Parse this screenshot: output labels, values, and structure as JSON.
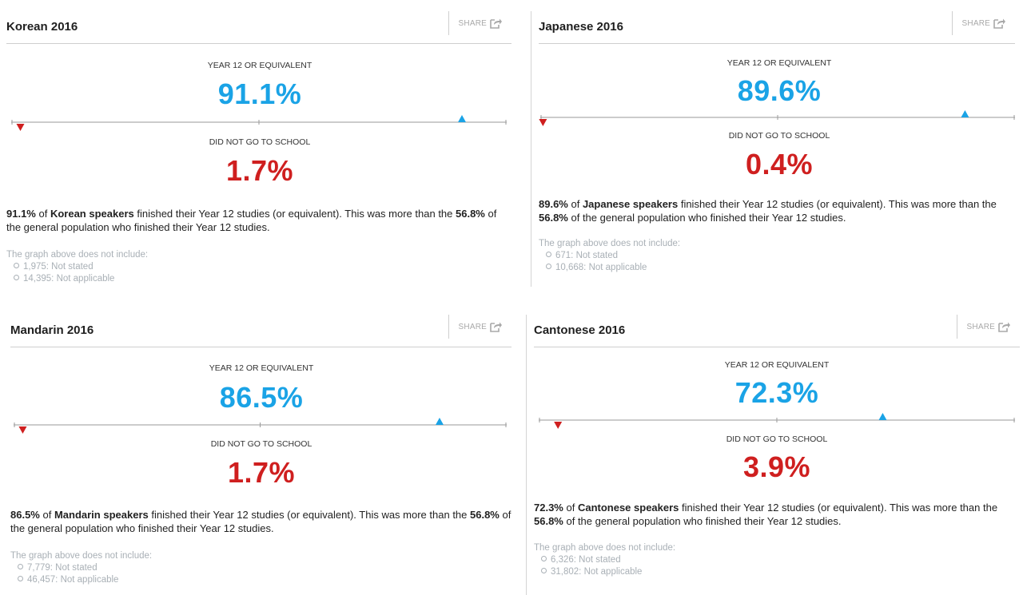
{
  "common": {
    "share_label": "SHARE",
    "year12_label": "YEAR 12 OR EQUIVALENT",
    "noschool_label": "DID NOT GO TO SCHOOL",
    "note_heading": "The graph above does not include:",
    "summary_middle": " finished their Year 12 studies (or equivalent). This was more than the ",
    "summary_tail": " of the general population who finished their Year 12 studies.",
    "general_population_pct": "56.8%"
  },
  "colors": {
    "blue": "#1aa3e6",
    "red": "#cf1f1f"
  },
  "chart_data": [
    {
      "type": "marker-scale",
      "title": "Korean 2016",
      "speakers": "Korean speakers",
      "year12_pct": 91.1,
      "year12_text": "91.1%",
      "noschool_pct": 1.7,
      "noschool_text": "1.7%",
      "scale_range": [
        0,
        100
      ],
      "note_items": [
        "1,975: Not stated",
        "14,395: Not applicable"
      ]
    },
    {
      "type": "marker-scale",
      "title": "Japanese 2016",
      "speakers": "Japanese speakers",
      "year12_pct": 89.6,
      "year12_text": "89.6%",
      "noschool_pct": 0.4,
      "noschool_text": "0.4%",
      "scale_range": [
        0,
        100
      ],
      "note_items": [
        "671: Not stated",
        "10,668: Not applicable"
      ]
    },
    {
      "type": "marker-scale",
      "title": "Mandarin 2016",
      "speakers": "Mandarin speakers",
      "year12_pct": 86.5,
      "year12_text": "86.5%",
      "noschool_pct": 1.7,
      "noschool_text": "1.7%",
      "scale_range": [
        0,
        100
      ],
      "note_items": [
        "7,779: Not stated",
        "46,457: Not applicable"
      ]
    },
    {
      "type": "marker-scale",
      "title": "Cantonese 2016",
      "speakers": "Cantonese speakers",
      "year12_pct": 72.3,
      "year12_text": "72.3%",
      "noschool_pct": 3.9,
      "noschool_text": "3.9%",
      "scale_range": [
        0,
        100
      ],
      "note_items": [
        "6,326: Not stated",
        "31,802: Not applicable"
      ]
    }
  ]
}
